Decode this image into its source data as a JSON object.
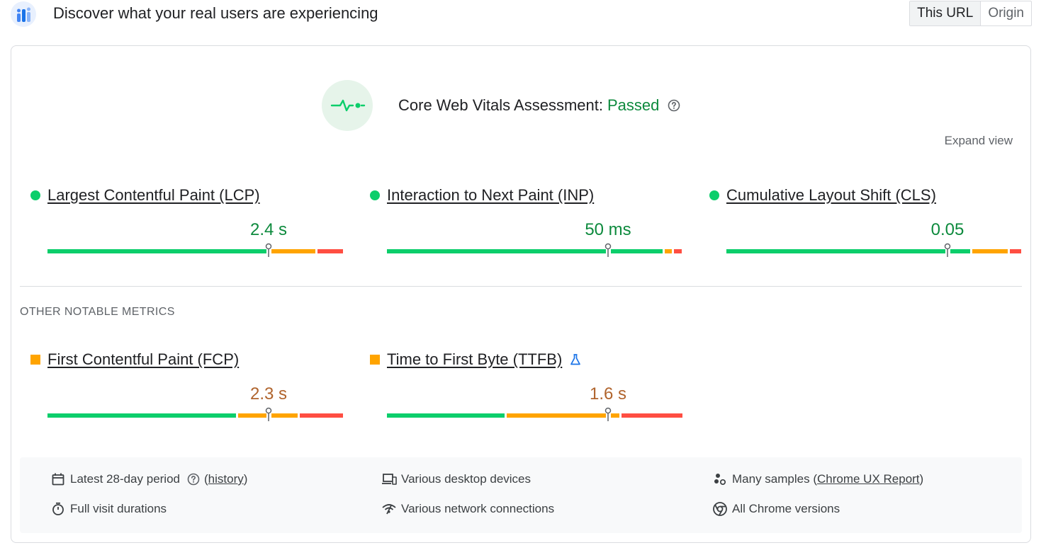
{
  "header": {
    "title": "Discover what your real users are experiencing",
    "toggle": {
      "this_url": "This URL",
      "origin": "Origin"
    }
  },
  "assessment": {
    "label": "Core Web Vitals Assessment:",
    "status": "Passed",
    "expand": "Expand view"
  },
  "core_metrics": [
    {
      "name": "Largest Contentful Paint (LCP)",
      "value": "2.4 s",
      "rating": "good",
      "marker_fraction": 0.75
    },
    {
      "name": "Interaction to Next Paint (INP)",
      "value": "50 ms",
      "rating": "good",
      "marker_fraction": 0.75
    },
    {
      "name": "Cumulative Layout Shift (CLS)",
      "value": "0.05",
      "rating": "good",
      "marker_fraction": 0.75
    }
  ],
  "other_metrics": {
    "title": "OTHER NOTABLE METRICS",
    "items": [
      {
        "name": "First Contentful Paint (FCP)",
        "value": "2.3 s",
        "rating": "average",
        "marker_fraction": 0.75
      },
      {
        "name": "Time to First Byte (TTFB)",
        "value": "1.6 s",
        "rating": "average",
        "marker_fraction": 0.75
      }
    ]
  },
  "distribution_fractions": {
    "lcp": {
      "good": 0.75,
      "ni": 0.16,
      "poor": 0.09
    },
    "inp": {
      "good": 0.93,
      "ni": 0.03,
      "poor": 0.04
    },
    "cls": {
      "good": 0.76,
      "ni": 0.14,
      "poor": 0.1
    },
    "fcp": {
      "good": 0.64,
      "ni": 0.21,
      "poor": 0.15
    },
    "ttfb": {
      "good": 0.4,
      "ni": 0.39,
      "poor": 0.21
    }
  },
  "footer": {
    "period": "Latest 28-day period",
    "history_open": "(",
    "history_link": "history",
    "history_close": ")",
    "durations": "Full visit durations",
    "devices": "Various desktop devices",
    "network": "Various network connections",
    "samples_prefix": "Many samples (",
    "samples_link": "Chrome UX Report",
    "samples_suffix": ")",
    "versions": "All Chrome versions"
  },
  "colors": {
    "good": "#0cce6b",
    "needs_improvement": "#ffa400",
    "poor": "#ff4e42",
    "passed_text": "#0d8a3d",
    "average_text": "#b0642d"
  }
}
